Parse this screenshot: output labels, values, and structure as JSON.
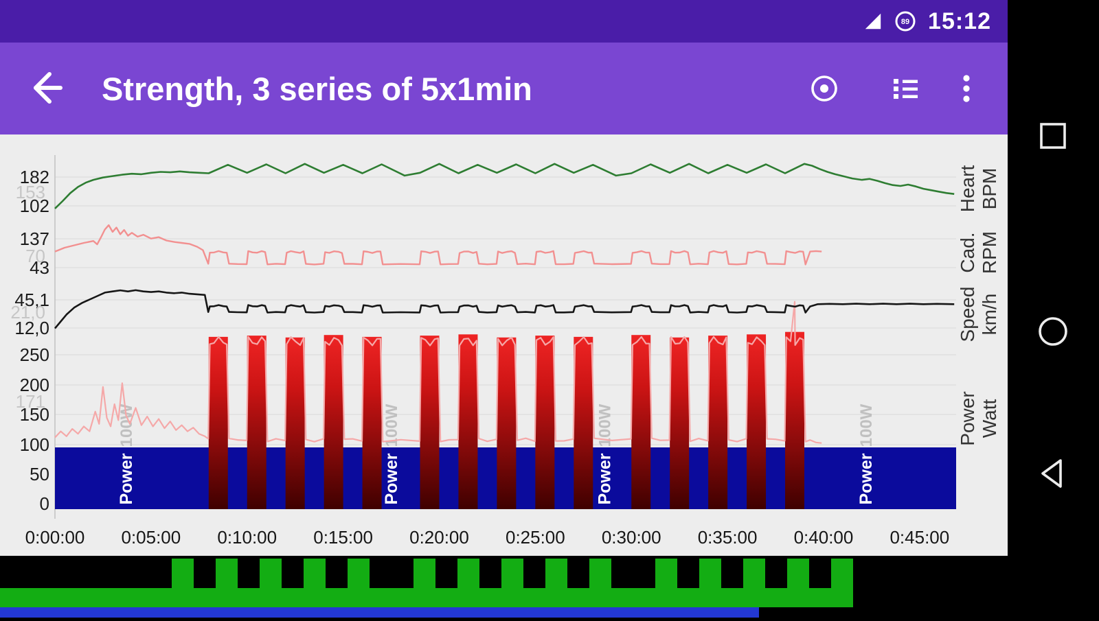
{
  "status_bar": {
    "time": "15:12",
    "battery_percent": "89"
  },
  "app_bar": {
    "title": "Strength, 3 series of 5x1min"
  },
  "nav_bar": {
    "buttons": [
      "recents",
      "home",
      "back"
    ]
  },
  "colors": {
    "status_bar": "#4a1da8",
    "app_bar": "#7a46d2",
    "chart_bg": "#ededed",
    "grid_line": "#d9d9d9",
    "axis_label": "#1c1c1c",
    "faint_label": "#c6c6c6",
    "heart": "#2e7d32",
    "cadence": "#f29090",
    "speed": "#161616",
    "power_trace": "#f5a8a8",
    "bar_top": "#ee2424",
    "bar_mid": "#cc1414",
    "bar_bottom": "#3f0000",
    "target_band": "#0b0b9c",
    "target_label": "#ffffff",
    "target_value": "#b5b5b5",
    "strip_green": "#13ad13",
    "strip_blue": "#2338d4"
  },
  "chart_data": {
    "type": "line",
    "title": "Strength, 3 series of 5x1min",
    "x_axis": {
      "tick_minutes": [
        0,
        5,
        10,
        15,
        20,
        25,
        30,
        35,
        40,
        45
      ],
      "tick_labels": [
        "0:00:00",
        "0:05:00",
        "0:10:00",
        "0:15:00",
        "0:20:00",
        "0:25:00",
        "0:30:00",
        "0:35:00",
        "0:40:00",
        "0:45:00"
      ],
      "range_minutes": [
        0,
        46.9
      ]
    },
    "intervals": {
      "description": "3 series of 5 x 1 min work intervals",
      "starts_min": [
        8,
        10,
        12,
        14,
        16,
        19,
        21,
        23,
        25,
        27,
        30,
        32,
        34,
        36,
        38
      ],
      "duration_min": 1,
      "bar_tops_watt": [
        279,
        281,
        278,
        282,
        279,
        281,
        283,
        278,
        281,
        279,
        282,
        278,
        281,
        283,
        287
      ]
    },
    "target_band": {
      "watt_from": 0,
      "watt_to": 100,
      "labels": [
        {
          "minute": 4,
          "title": "Power",
          "value": "100W"
        },
        {
          "minute": 17.8,
          "title": "Power",
          "value": "100W"
        },
        {
          "minute": 28.9,
          "title": "Power",
          "value": "100W"
        },
        {
          "minute": 42.5,
          "title": "Power",
          "value": "100W"
        }
      ]
    },
    "panels": [
      {
        "id": "heart",
        "name": "Heart",
        "unit": "BPM",
        "color_key": "heart",
        "value_range": [
          85,
          190
        ],
        "axis_labels": [
          "182",
          "102"
        ],
        "faint_label": "153",
        "warmup_points": [
          [
            0,
            88
          ],
          [
            0.4,
            104
          ],
          [
            0.8,
            121
          ],
          [
            1.2,
            134
          ],
          [
            1.6,
            143
          ],
          [
            2,
            149
          ],
          [
            2.5,
            154
          ],
          [
            3,
            157
          ],
          [
            3.5,
            160
          ],
          [
            4,
            162
          ],
          [
            4.5,
            161
          ],
          [
            5,
            164
          ],
          [
            5.5,
            166
          ],
          [
            6,
            165
          ],
          [
            6.5,
            167
          ],
          [
            7,
            165
          ],
          [
            7.5,
            164
          ],
          [
            8,
            163
          ]
        ],
        "interval_response": {
          "mode": "triangle",
          "rest_low": 163,
          "work_peak": 181,
          "gap_low": 158
        },
        "cooldown_points": [
          [
            39.4,
            179
          ],
          [
            39.8,
            172
          ],
          [
            40.2,
            166
          ],
          [
            40.6,
            161
          ],
          [
            41,
            157
          ],
          [
            41.5,
            152
          ],
          [
            42,
            149
          ],
          [
            42.4,
            151
          ],
          [
            42.8,
            147
          ],
          [
            43.2,
            142
          ],
          [
            43.6,
            138
          ],
          [
            44,
            136
          ],
          [
            44.4,
            139
          ],
          [
            44.8,
            135
          ],
          [
            45.2,
            130
          ],
          [
            45.6,
            127
          ],
          [
            46,
            124
          ],
          [
            46.4,
            121
          ],
          [
            46.8,
            119
          ]
        ]
      },
      {
        "id": "cadence",
        "name": "Cad.",
        "unit": "RPM",
        "color_key": "cadence",
        "value_range": [
          40,
          140
        ],
        "axis_labels": [
          "137",
          "43"
        ],
        "faint_label": "70",
        "warmup_points": [
          [
            0,
            82
          ],
          [
            0.5,
            90
          ],
          [
            1,
            95
          ],
          [
            1.5,
            100
          ],
          [
            2,
            104
          ],
          [
            2.2,
            97
          ],
          [
            2.4,
            112
          ],
          [
            2.6,
            128
          ],
          [
            2.8,
            137
          ],
          [
            3,
            123
          ],
          [
            3.2,
            132
          ],
          [
            3.4,
            118
          ],
          [
            3.6,
            127
          ],
          [
            3.8,
            115
          ],
          [
            4,
            121
          ],
          [
            4.3,
            113
          ],
          [
            4.6,
            117
          ],
          [
            5,
            109
          ],
          [
            5.4,
            112
          ],
          [
            5.8,
            105
          ],
          [
            6.2,
            102
          ],
          [
            6.6,
            100
          ],
          [
            7,
            98
          ],
          [
            7.4,
            92
          ],
          [
            7.7,
            85
          ]
        ],
        "interval_response": {
          "mode": "square",
          "rest": 56,
          "work": 81,
          "noise": 2
        },
        "cooldown_points": [
          [
            39.3,
            82
          ],
          [
            39.6,
            83
          ],
          [
            39.9,
            82
          ]
        ]
      },
      {
        "id": "speed",
        "name": "Speed",
        "unit": "km/h",
        "color_key": "speed",
        "value_range": [
          10,
          48
        ],
        "axis_labels": [
          "45,1",
          "12,0"
        ],
        "faint_label": "21,0",
        "warmup_points": [
          [
            0,
            12
          ],
          [
            0.3,
            18
          ],
          [
            0.6,
            24
          ],
          [
            1,
            30
          ],
          [
            1.4,
            34
          ],
          [
            1.8,
            37
          ],
          [
            2.2,
            40
          ],
          [
            2.6,
            43
          ],
          [
            3,
            44
          ],
          [
            3.4,
            45
          ],
          [
            3.8,
            44
          ],
          [
            4.2,
            45.1
          ],
          [
            4.6,
            44
          ],
          [
            5,
            43.5
          ],
          [
            5.4,
            44
          ],
          [
            5.8,
            43
          ],
          [
            6.2,
            42.5
          ],
          [
            6.6,
            43
          ],
          [
            7,
            42
          ],
          [
            7.4,
            41.5
          ],
          [
            7.8,
            41
          ]
        ],
        "interval_response": {
          "mode": "square",
          "rest": 26,
          "work": 31.5,
          "noise": 0.7
        },
        "cooldown_points": [
          [
            39.3,
            31
          ],
          [
            39.7,
            33
          ],
          [
            40.3,
            33.3
          ],
          [
            41,
            33
          ],
          [
            41.7,
            33.4
          ],
          [
            42.4,
            33
          ],
          [
            43.1,
            33.4
          ],
          [
            43.8,
            33
          ],
          [
            44.5,
            33.4
          ],
          [
            45.2,
            33
          ],
          [
            45.9,
            33.3
          ],
          [
            46.8,
            33
          ]
        ]
      },
      {
        "id": "power",
        "name": "Power",
        "unit": "Watt",
        "color_key": "power_trace",
        "value_range": [
          0,
          250
        ],
        "axis_labels": [
          "250",
          "200",
          "150",
          "100",
          "50",
          "0"
        ],
        "faint_label": "171",
        "warmup_points": [
          [
            0,
            116
          ],
          [
            0.3,
            126
          ],
          [
            0.6,
            118
          ],
          [
            0.9,
            130
          ],
          [
            1.2,
            122
          ],
          [
            1.5,
            134
          ],
          [
            1.8,
            126
          ],
          [
            2.1,
            158
          ],
          [
            2.3,
            138
          ],
          [
            2.5,
            198
          ],
          [
            2.7,
            148
          ],
          [
            2.9,
            134
          ],
          [
            3.1,
            170
          ],
          [
            3.3,
            144
          ],
          [
            3.5,
            204
          ],
          [
            3.7,
            152
          ],
          [
            3.9,
            138
          ],
          [
            4.2,
            164
          ],
          [
            4.5,
            136
          ],
          [
            4.8,
            150
          ],
          [
            5.1,
            134
          ],
          [
            5.4,
            146
          ],
          [
            5.7,
            131
          ],
          [
            6,
            142
          ],
          [
            6.3,
            128
          ],
          [
            6.6,
            136
          ],
          [
            6.9,
            126
          ],
          [
            7.2,
            132
          ],
          [
            7.5,
            122
          ],
          [
            7.8,
            118
          ]
        ],
        "interval_response": {
          "mode": "square",
          "rest": 112,
          "work": 272,
          "noise": 7
        },
        "extra_points": [
          [
            38.5,
            336
          ]
        ],
        "cooldown_points": [
          [
            39.3,
            112
          ],
          [
            39.6,
            108
          ],
          [
            39.9,
            107
          ]
        ]
      }
    ]
  },
  "bottom_strip": {
    "description": "workout interval overview",
    "bar_count": 15
  }
}
